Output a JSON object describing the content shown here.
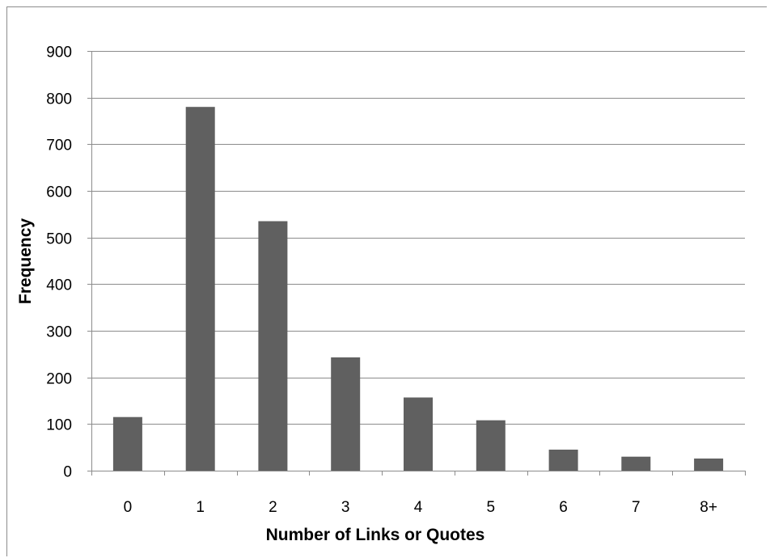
{
  "chart_data": {
    "type": "bar",
    "title": "",
    "xlabel": "Number of Links or Quotes",
    "ylabel": "Frequency",
    "categories": [
      "0",
      "1",
      "2",
      "3",
      "4",
      "5",
      "6",
      "7",
      "8+"
    ],
    "values": [
      115,
      780,
      535,
      243,
      157,
      108,
      45,
      30,
      26
    ],
    "ylim": [
      0,
      900
    ],
    "yticks": [
      "0",
      "100",
      "200",
      "300",
      "400",
      "500",
      "600",
      "700",
      "800",
      "900"
    ],
    "grid": true,
    "legend": "none",
    "colors": {
      "bar": "#606060",
      "grid": "#8c8c8c",
      "axis": "#8c8c8c",
      "frame": "#8c8c8c"
    }
  }
}
